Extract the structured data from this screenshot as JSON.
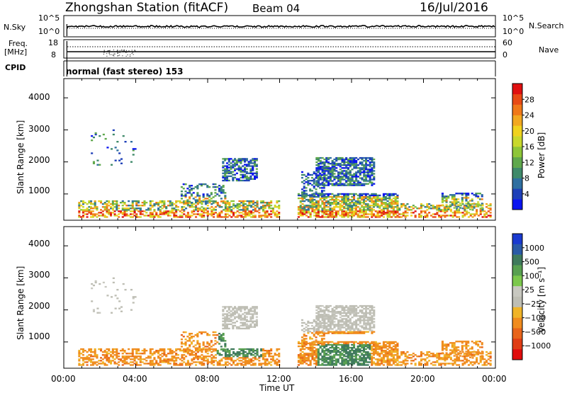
{
  "header": {
    "title": "Zhongshan Station (fitACF)",
    "beam": "Beam 04",
    "date": "16/Jul/2016"
  },
  "top_panels": {
    "nsky_label": "N.Sky",
    "nsky_ticks": [
      "10^5",
      "10^0"
    ],
    "nsearch_label": "N.Search",
    "nsearch_ticks": [
      "10^5",
      "10^0"
    ],
    "freq_label_1": "Freq.",
    "freq_label_2": "[MHz]",
    "freq_ticks": [
      "18",
      "8"
    ],
    "nave_label": "Nave",
    "nave_ticks": [
      "60",
      "0"
    ],
    "cpid_label": "CPID",
    "cpid_text": "normal (fast stereo) 153"
  },
  "chart_data": [
    {
      "type": "heatmap",
      "name": "power",
      "ylabel": "Slant Range [km]",
      "yticks": [
        "1000",
        "2000",
        "3000",
        "4000"
      ],
      "ylim": [
        180,
        4600
      ],
      "xlim_hours": [
        0,
        24
      ],
      "colorbar_label": "Power [dB]",
      "colorbar_ticks": [
        "4",
        "8",
        "12",
        "16",
        "20",
        "24",
        "28"
      ],
      "colorbar_range": [
        0,
        32
      ],
      "colors": [
        "#0a14f0",
        "#1e40b8",
        "#2f6fa0",
        "#3f8a6a",
        "#5fa84c",
        "#8ec638",
        "#c8d82c",
        "#f0d21e",
        "#f2a820",
        "#f07818",
        "#e84a14",
        "#e01010"
      ]
    },
    {
      "type": "heatmap",
      "name": "velocity",
      "ylabel": "Slant Range [km]",
      "yticks": [
        "1000",
        "2000",
        "3000",
        "4000"
      ],
      "ylim": [
        180,
        4600
      ],
      "xlim_hours": [
        0,
        24
      ],
      "colorbar_label": "Velocity [m s⁻¹]",
      "colorbar_ticks": [
        "1000",
        "500",
        "100",
        "25",
        "−25",
        "−100",
        "−500",
        "−1000"
      ],
      "colors": [
        "#1a3ad0",
        "#2a5aa6",
        "#3f7a5c",
        "#58a050",
        "#7cc84c",
        "#c8c8c0",
        "#bebeb4",
        "#f0b428",
        "#f08c1e",
        "#e8641a",
        "#e03c14",
        "#e00c0c"
      ]
    }
  ],
  "x_axis": {
    "ticks": [
      "00:00",
      "04:00",
      "08:00",
      "12:00",
      "16:00",
      "20:00",
      "00:00"
    ],
    "label": "Time UT"
  }
}
